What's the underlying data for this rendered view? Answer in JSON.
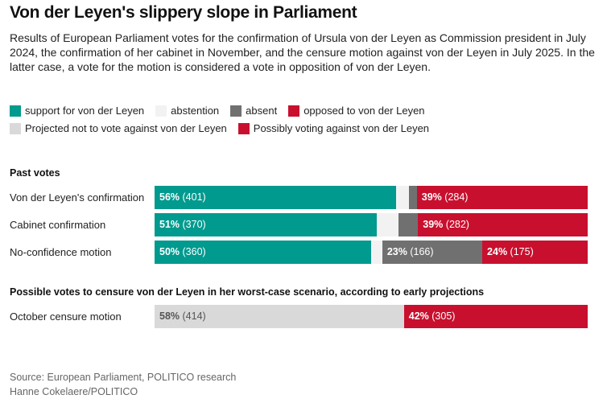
{
  "chart_data": {
    "type": "bar",
    "orientation": "horizontal",
    "stacked": true,
    "title": "Von der Leyen's slippery slope in Parliament",
    "subtitle": "Results of European Parliament votes for the confirmation of Ursula von der Leyen as Commission president in July 2024, the confirmation of her cabinet in November, and the censure motion against von der Leyen in July 2025. In the latter case, a vote for the motion is considered a vote in opposition of von der Leyen.",
    "groups": [
      {
        "title": "Past votes",
        "categories": [
          "Von der Leyen's confirmation",
          "Cabinet confirmation",
          "No-confidence motion"
        ],
        "series": [
          {
            "name": "support for von der Leyen",
            "color": "#009a8e",
            "values": [
              401,
              370,
              360
            ],
            "value_labels": [
              "56% (401)",
              "51% (370)",
              "50% (360)"
            ]
          },
          {
            "name": "abstention",
            "color": "#f2f2f2",
            "values": [
              22,
              36,
              18
            ],
            "value_labels": [
              null,
              null,
              null
            ]
          },
          {
            "name": "absent",
            "color": "#707070",
            "values": [
              13,
              32,
              166
            ],
            "value_labels": [
              null,
              null,
              "23% (166)"
            ]
          },
          {
            "name": "opposed to von der Leyen",
            "color": "#c8102e",
            "values": [
              284,
              282,
              175
            ],
            "value_labels": [
              "39% (284)",
              "39% (282)",
              "24% (175)"
            ]
          }
        ]
      },
      {
        "title": "Possible votes to censure von der Leyen in her worst-case scenario, according to early projections",
        "categories": [
          "October censure motion"
        ],
        "series": [
          {
            "name": "Projected not to vote against von der Leyen",
            "color": "#d9d9d9",
            "values": [
              414
            ],
            "value_labels": [
              "58% (414)"
            ]
          },
          {
            "name": "Possibly voting against von der Leyen",
            "color": "#c8102e",
            "values": [
              305
            ],
            "value_labels": [
              "42% (305)"
            ]
          }
        ]
      }
    ],
    "source": [
      "Source: European Parliament, POLITICO research",
      "Hanne Cokelaere/POLITICO"
    ]
  }
}
